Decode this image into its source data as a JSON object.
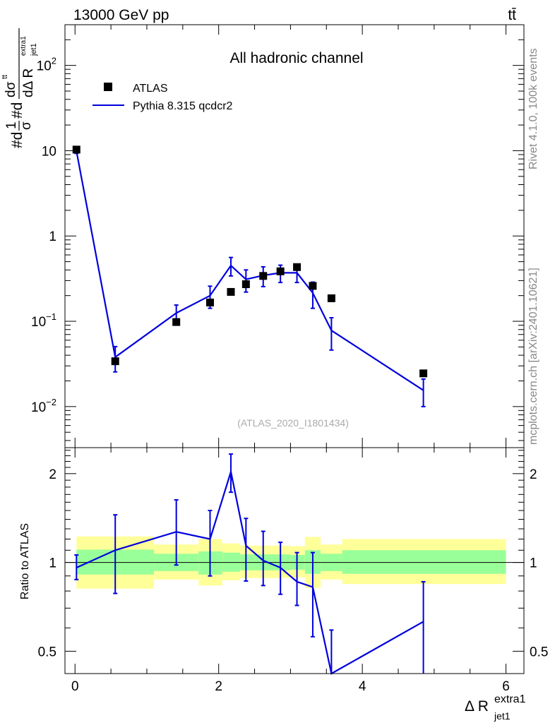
{
  "header": {
    "energy_label": "13000 GeV pp",
    "process_label": "tt̄"
  },
  "side_labels": {
    "rivet": "Rivet 4.1.0,  100k events",
    "mcplots": "mcplots.cern.ch [arXiv:2401.10621]"
  },
  "chart_data": [
    {
      "type": "scatter",
      "title": "All hadronic channel",
      "analysis_id": "(ATLAS_2020_I1801434)",
      "ylabel": "#d1/#dσ dσᵗᵗ / dΔ R_jet1^extra1",
      "ylabel_parts": {
        "main": "#d",
        "frac1_num": "1",
        "frac1_den": "σ",
        "mid": "#d",
        "frac2_num": "dσ",
        "frac2_num_sup": "tt",
        "frac2_den": "dΔ R",
        "frac2_den_sub": "jet1",
        "frac2_den_sup": "extra1"
      },
      "yscale": "log",
      "xlim": [
        -0.14,
        6.25
      ],
      "ylim": [
        0.0033,
        300
      ],
      "x_ticks": [
        0,
        2,
        4,
        6
      ],
      "y_ticks": [
        {
          "value": 0.01,
          "base": "10",
          "exp": "−2"
        },
        {
          "value": 0.1,
          "base": "10",
          "exp": "−1"
        },
        {
          "value": 1,
          "base": "1",
          "exp": ""
        },
        {
          "value": 10,
          "base": "10",
          "exp": ""
        },
        {
          "value": 100,
          "base": "10",
          "exp": "2"
        }
      ],
      "legend_position": "top-left",
      "series": [
        {
          "name": "ATLAS",
          "style": "markers",
          "color": "#000000",
          "points": [
            {
              "x": 0.02,
              "y": 10.3
            },
            {
              "x": 0.56,
              "y": 0.034
            },
            {
              "x": 1.41,
              "y": 0.098
            },
            {
              "x": 1.88,
              "y": 0.166
            },
            {
              "x": 2.17,
              "y": 0.221
            },
            {
              "x": 2.38,
              "y": 0.272
            },
            {
              "x": 2.62,
              "y": 0.34
            },
            {
              "x": 2.86,
              "y": 0.385
            },
            {
              "x": 3.09,
              "y": 0.432
            },
            {
              "x": 3.31,
              "y": 0.26
            },
            {
              "x": 3.57,
              "y": 0.186
            },
            {
              "x": 4.85,
              "y": 0.0245
            }
          ]
        },
        {
          "name": "Pythia 8.315 qcdcr2",
          "style": "line",
          "color": "#0000dd",
          "points": [
            {
              "x": 0.02,
              "y": 9.9,
              "err": 0.6
            },
            {
              "x": 0.56,
              "y": 0.038,
              "err": 0.0125
            },
            {
              "x": 1.41,
              "y": 0.125,
              "err": 0.03
            },
            {
              "x": 1.88,
              "y": 0.2,
              "err": 0.058
            },
            {
              "x": 2.17,
              "y": 0.45,
              "err": 0.11
            },
            {
              "x": 2.38,
              "y": 0.31,
              "err": 0.09
            },
            {
              "x": 2.62,
              "y": 0.345,
              "err": 0.09
            },
            {
              "x": 2.86,
              "y": 0.37,
              "err": 0.085
            },
            {
              "x": 3.09,
              "y": 0.37,
              "err": 0.085
            },
            {
              "x": 3.31,
              "y": 0.215,
              "err": 0.073
            },
            {
              "x": 3.57,
              "y": 0.078,
              "err": 0.032
            },
            {
              "x": 4.85,
              "y": 0.0155,
              "err": 0.0055
            }
          ]
        }
      ]
    },
    {
      "type": "line",
      "ylabel": "Ratio to ATLAS",
      "xlabel": "Δ R_jet1^extra1",
      "xlabel_parts": {
        "main": "Δ R",
        "sub": "jet1",
        "sup": "extra1"
      },
      "yscale": "log",
      "xlim": [
        -0.14,
        6.25
      ],
      "ylim": [
        0.42,
        2.45
      ],
      "x_ticks": [
        0,
        2,
        4,
        6
      ],
      "x_tick_labels": [
        "0",
        "2",
        "4",
        "6"
      ],
      "y_ticks": [
        0.5,
        1,
        2
      ],
      "y_tick_labels": [
        "0.5",
        "1",
        "2"
      ],
      "bands": [
        {
          "x0": 0.02,
          "x1": 1.1,
          "y_lo": 0.815,
          "y_hi": 1.225,
          "y_lo_inner": 0.91,
          "y_hi_inner": 1.105
        },
        {
          "x0": 1.1,
          "x1": 1.72,
          "y_lo": 0.875,
          "y_hi": 1.15,
          "y_lo_inner": 0.935,
          "y_hi_inner": 1.07
        },
        {
          "x0": 1.72,
          "x1": 2.05,
          "y_lo": 0.835,
          "y_hi": 1.2,
          "y_lo_inner": 0.91,
          "y_hi_inner": 1.09
        },
        {
          "x0": 2.05,
          "x1": 2.3,
          "y_lo": 0.87,
          "y_hi": 1.16,
          "y_lo_inner": 0.93,
          "y_hi_inner": 1.08
        },
        {
          "x0": 2.3,
          "x1": 2.5,
          "y_lo": 0.885,
          "y_hi": 1.14,
          "y_lo_inner": 0.94,
          "y_hi_inner": 1.065
        },
        {
          "x0": 2.5,
          "x1": 2.75,
          "y_lo": 0.885,
          "y_hi": 1.14,
          "y_lo_inner": 0.94,
          "y_hi_inner": 1.065
        },
        {
          "x0": 2.75,
          "x1": 3.0,
          "y_lo": 0.885,
          "y_hi": 1.14,
          "y_lo_inner": 0.94,
          "y_hi_inner": 1.065
        },
        {
          "x0": 3.0,
          "x1": 3.2,
          "y_lo": 0.89,
          "y_hi": 1.135,
          "y_lo_inner": 0.945,
          "y_hi_inner": 1.06
        },
        {
          "x0": 3.2,
          "x1": 3.42,
          "y_lo": 0.82,
          "y_hi": 1.22,
          "y_lo_inner": 0.915,
          "y_hi_inner": 1.1
        },
        {
          "x0": 3.42,
          "x1": 3.72,
          "y_lo": 0.875,
          "y_hi": 1.15,
          "y_lo_inner": 0.935,
          "y_hi_inner": 1.07
        },
        {
          "x0": 3.72,
          "x1": 6.0,
          "y_lo": 0.845,
          "y_hi": 1.2,
          "y_lo_inner": 0.915,
          "y_hi_inner": 1.1
        }
      ],
      "reference_line": 1,
      "series": [
        {
          "name": "Pythia 8.315 qcdcr2",
          "color": "#0000dd",
          "points": [
            {
              "x": 0.02,
              "y": 0.96,
              "lo": 0.875,
              "hi": 1.06
            },
            {
              "x": 0.56,
              "y": 1.1,
              "lo": 0.785,
              "hi": 1.45
            },
            {
              "x": 1.41,
              "y": 1.27,
              "lo": 0.98,
              "hi": 1.63
            },
            {
              "x": 1.88,
              "y": 1.2,
              "lo": 0.9,
              "hi": 1.5
            },
            {
              "x": 2.17,
              "y": 2.03,
              "lo": 1.73,
              "hi": 2.33
            },
            {
              "x": 2.38,
              "y": 1.14,
              "lo": 0.865,
              "hi": 1.41
            },
            {
              "x": 2.62,
              "y": 1.015,
              "lo": 0.835,
              "hi": 1.275
            },
            {
              "x": 2.86,
              "y": 0.96,
              "lo": 0.78,
              "hi": 1.17
            },
            {
              "x": 3.09,
              "y": 0.86,
              "lo": 0.715,
              "hi": 1.08
            },
            {
              "x": 3.31,
              "y": 0.825,
              "lo": 0.56,
              "hi": 1.08
            },
            {
              "x": 3.57,
              "y": 0.42,
              "lo": 0.42,
              "hi": 0.59
            },
            {
              "x": 4.85,
              "y": 0.63,
              "lo": 0.42,
              "hi": 0.86
            }
          ]
        }
      ]
    }
  ]
}
